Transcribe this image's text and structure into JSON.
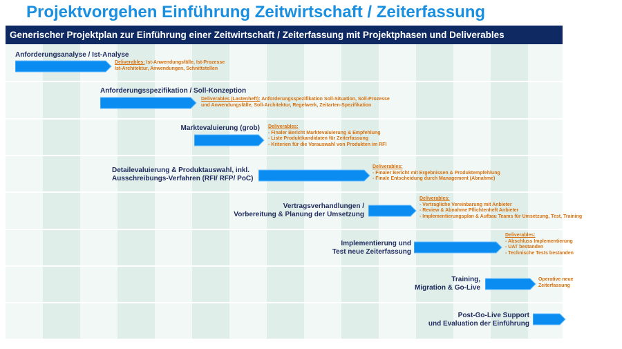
{
  "title": "Projektvorgehen Einführung Zeitwirtschaft / Zeiterfassung",
  "banner": "Generischer Projektplan zur Einführung einer Zeitwirtschaft / Zeiterfassung mit Projektphasen und Deliverables",
  "colors": {
    "title": "#1a8fe0",
    "banner": "#0f2a62",
    "arrow": "#0a8cf0",
    "deliverables": "#d9700e",
    "phase_text": "#1f2a5e",
    "band": "#dfeee9"
  },
  "phases": [
    {
      "label_lines": [
        "Anforderungsanalyse / Ist-Analyse"
      ],
      "deliverables_head": "Deliverables:",
      "deliverables_lines": [
        "Ist-Anwendungsfälle, Ist-Prozesse",
        "Ist-Architektur, Anwendungen, Schnittstellen"
      ]
    },
    {
      "label_lines": [
        "Anforderungsspezifikation / Soll-Konzeption"
      ],
      "deliverables_head": "Deliverables (Lastenheft):",
      "deliverables_lines": [
        "Anforderungsspezifikation Soll-Situation, Soll-Prozesse",
        "und Anwendungsfälle, Soll-Architektur, Regelwerk, Zeitarten-Spezifikation"
      ]
    },
    {
      "label_lines": [
        "Marktevaluierung (grob)"
      ],
      "deliverables_head": "Deliverables:",
      "deliverables_lines": [
        "- Finaler Bericht Marktevaluierung & Empfehlung",
        "- Liste Produktkandidaten für Zeiterfassung",
        "- Kriterien für die Vorauswahl von Produkten im RFI"
      ]
    },
    {
      "label_lines": [
        "Detailevaluierung & Produktauswahl, inkl.",
        "Ausschreibungs-Verfahren (RFI/ RFP/ PoC)"
      ],
      "deliverables_head": "Deliverables:",
      "deliverables_lines": [
        "- Finaler Bericht mit Ergebnissen & Produktempfehlung",
        "- Finale Entscheidung durch Management (Abnahme)"
      ]
    },
    {
      "label_lines": [
        "Vertragsverhandlungen /",
        "Vorbereitung & Planung der Umsetzung"
      ],
      "deliverables_head": "Deliverables:",
      "deliverables_lines": [
        "- Vertragliche Vereinbarung mit Anbieter",
        "- Review & Abnahme Pflichtenheft Anbieter",
        "- Implementierungsplan & Aufbau Teams für Umsetzung, Test, Training"
      ]
    },
    {
      "label_lines": [
        "Implementierung und",
        "Test neue Zeiterfassung"
      ],
      "deliverables_head": "Deliverables:",
      "deliverables_lines": [
        "- Abschluss Implementierung",
        "- UAT bestanden",
        "- Technische Tests bestanden"
      ]
    },
    {
      "label_lines": [
        "Training,",
        "Migration & Go-Live"
      ],
      "deliverables_head": "",
      "deliverables_lines": [
        "Operative neue",
        "Zeiterfassung"
      ]
    },
    {
      "label_lines": [
        "Post-Go-Live Support",
        "und Evaluation der Einführung"
      ],
      "deliverables_head": "",
      "deliverables_lines": []
    }
  ]
}
